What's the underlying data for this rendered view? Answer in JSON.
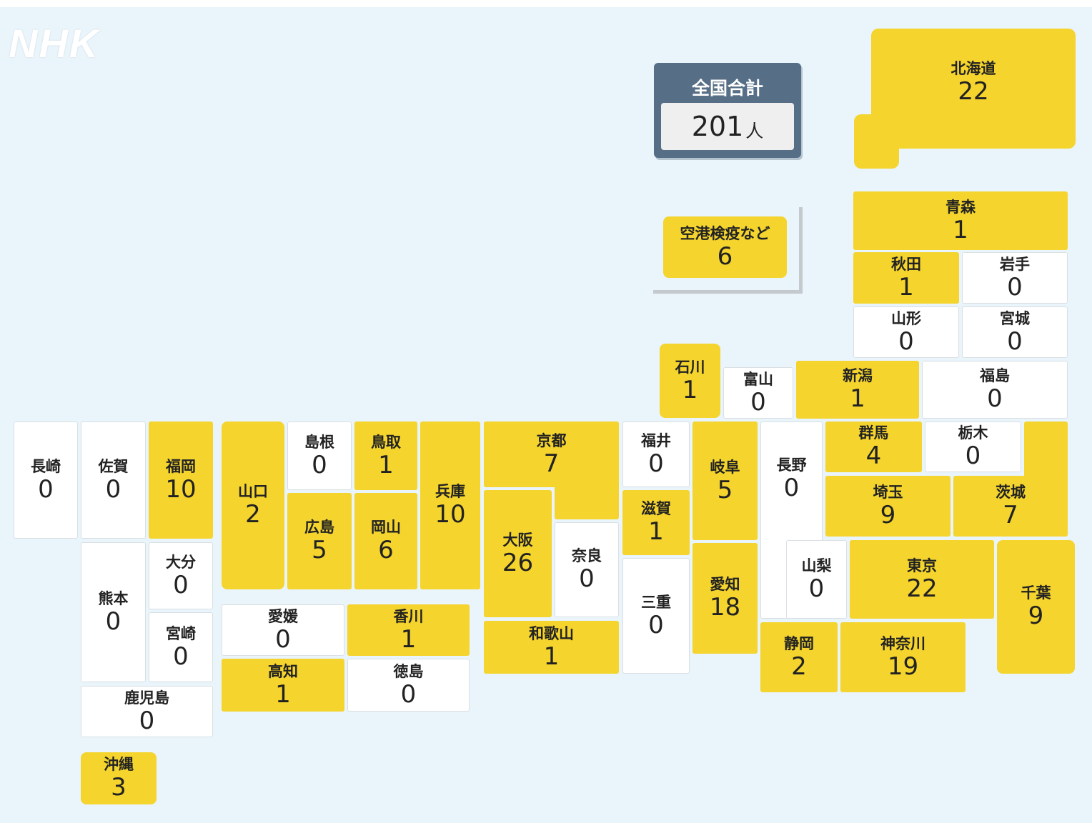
{
  "logo": "NHK",
  "total": {
    "label": "全国合計",
    "value": "201",
    "unit": "人"
  },
  "airport": {
    "name": "空港検疫など",
    "count": "6"
  },
  "colors": {
    "nonzero": "#f4d42d",
    "zero": "#ffffff",
    "background": "#e9f4fb",
    "total_panel": "#566e86"
  },
  "prefectures": {
    "hokkaido": {
      "name": "北海道",
      "count": "22"
    },
    "aomori": {
      "name": "青森",
      "count": "1"
    },
    "akita": {
      "name": "秋田",
      "count": "1"
    },
    "iwate": {
      "name": "岩手",
      "count": "0"
    },
    "yamagata": {
      "name": "山形",
      "count": "0"
    },
    "miyagi": {
      "name": "宮城",
      "count": "0"
    },
    "ishikawa": {
      "name": "石川",
      "count": "1"
    },
    "toyama": {
      "name": "富山",
      "count": "0"
    },
    "niigata": {
      "name": "新潟",
      "count": "1"
    },
    "fukushima": {
      "name": "福島",
      "count": "0"
    },
    "nagasaki": {
      "name": "長崎",
      "count": "0"
    },
    "saga": {
      "name": "佐賀",
      "count": "0"
    },
    "fukuoka": {
      "name": "福岡",
      "count": "10"
    },
    "yamaguchi": {
      "name": "山口",
      "count": "2"
    },
    "shimane": {
      "name": "島根",
      "count": "0"
    },
    "tottori": {
      "name": "鳥取",
      "count": "1"
    },
    "hyogo": {
      "name": "兵庫",
      "count": "10"
    },
    "kyoto": {
      "name": "京都",
      "count": "7"
    },
    "fukui": {
      "name": "福井",
      "count": "0"
    },
    "gifu": {
      "name": "岐阜",
      "count": "5"
    },
    "nagano": {
      "name": "長野",
      "count": "0"
    },
    "gunma": {
      "name": "群馬",
      "count": "4"
    },
    "tochigi": {
      "name": "栃木",
      "count": "0"
    },
    "ibaraki": {
      "name": "茨城",
      "count": "7"
    },
    "saitama": {
      "name": "埼玉",
      "count": "9"
    },
    "hiroshima": {
      "name": "広島",
      "count": "5"
    },
    "okayama": {
      "name": "岡山",
      "count": "6"
    },
    "osaka": {
      "name": "大阪",
      "count": "26"
    },
    "nara": {
      "name": "奈良",
      "count": "0"
    },
    "shiga": {
      "name": "滋賀",
      "count": "1"
    },
    "mie": {
      "name": "三重",
      "count": "0"
    },
    "aichi": {
      "name": "愛知",
      "count": "18"
    },
    "yamanashi": {
      "name": "山梨",
      "count": "0"
    },
    "tokyo": {
      "name": "東京",
      "count": "22"
    },
    "chiba": {
      "name": "千葉",
      "count": "9"
    },
    "kumamoto": {
      "name": "熊本",
      "count": "0"
    },
    "oita": {
      "name": "大分",
      "count": "0"
    },
    "miyazaki": {
      "name": "宮崎",
      "count": "0"
    },
    "kagoshima": {
      "name": "鹿児島",
      "count": "0"
    },
    "ehime": {
      "name": "愛媛",
      "count": "0"
    },
    "kagawa": {
      "name": "香川",
      "count": "1"
    },
    "kochi": {
      "name": "高知",
      "count": "1"
    },
    "tokushima": {
      "name": "徳島",
      "count": "0"
    },
    "wakayama": {
      "name": "和歌山",
      "count": "1"
    },
    "shizuoka": {
      "name": "静岡",
      "count": "2"
    },
    "kanagawa": {
      "name": "神奈川",
      "count": "19"
    },
    "okinawa": {
      "name": "沖縄",
      "count": "3"
    }
  }
}
